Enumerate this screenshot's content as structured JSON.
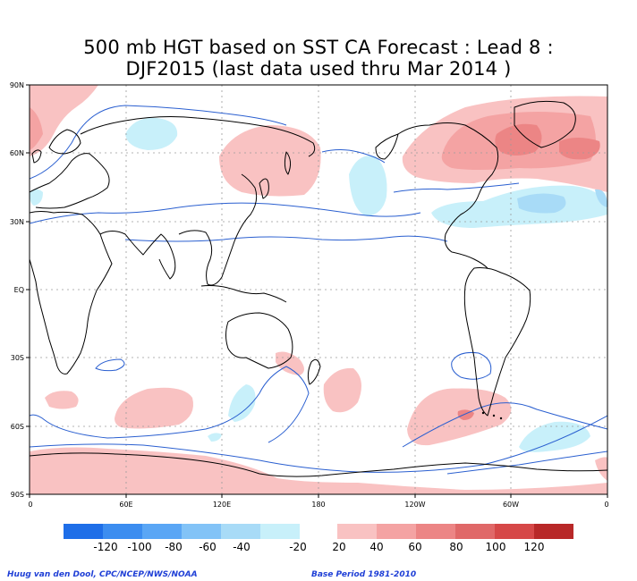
{
  "title": {
    "line1": "500 mb HGT based on SST CA Forecast : Lead 8 :",
    "line2": "DJF2015 (last data used thru Mar 2014 )"
  },
  "axes": {
    "lat_labels": [
      "90N",
      "60N",
      "30N",
      "EQ",
      "30S",
      "60S",
      "90S"
    ],
    "lon_labels": [
      "0",
      "60E",
      "120E",
      "180",
      "120W",
      "60W",
      "0"
    ]
  },
  "legend": {
    "negative": {
      "labels": [
        "-120",
        "-100",
        "-80",
        "-60",
        "-40",
        "-20"
      ],
      "colors": [
        "#1e6ee8",
        "#3c8df0",
        "#5aa6f5",
        "#82c3f7",
        "#a8dbf7",
        "#c8f0fa"
      ]
    },
    "positive": {
      "labels": [
        "20",
        "40",
        "60",
        "80",
        "100",
        "120"
      ],
      "colors": [
        "#f9c2c2",
        "#f4a3a3",
        "#ec8585",
        "#e06868",
        "#d64848",
        "#b82828"
      ]
    }
  },
  "footer": {
    "left": "Huug van den Dool, CPC/NCEP/NWS/NOAA",
    "right": "Base Period 1981-2010"
  },
  "colors": {
    "contour": "#2a5fd0",
    "coast": "#000000",
    "grid": "#9a9a9a",
    "frame": "#000000"
  }
}
